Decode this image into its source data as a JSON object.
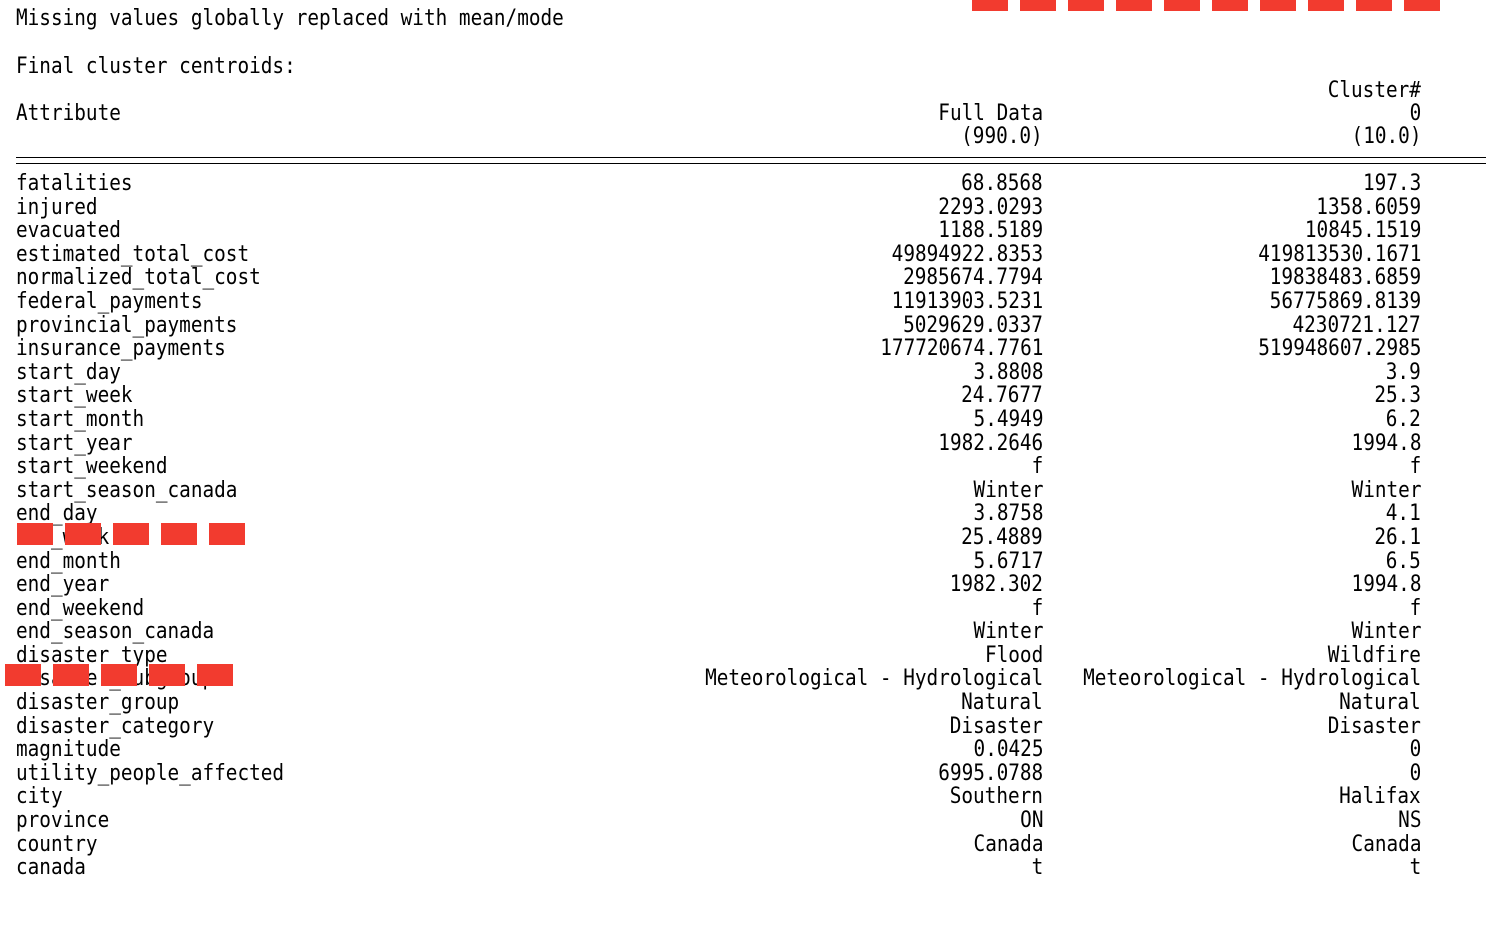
{
  "status_line": "Missing values globally replaced with mean/mode",
  "section_title": "Final cluster centroids:",
  "headers": {
    "attribute": "Attribute",
    "cluster_label": "Cluster#",
    "full_data": "Full Data",
    "full_data_count": "(990.0)",
    "cluster_0": "0",
    "cluster_0_count": "(10.0)"
  },
  "rows": [
    {
      "attr": "fatalities",
      "full": "68.8568",
      "c0": "197.3"
    },
    {
      "attr": "injured",
      "full": "2293.0293",
      "c0": "1358.6059"
    },
    {
      "attr": "evacuated",
      "full": "1188.5189",
      "c0": "10845.1519"
    },
    {
      "attr": "estimated_total_cost",
      "full": "49894922.8353",
      "c0": "419813530.1671"
    },
    {
      "attr": "normalized_total_cost",
      "full": "2985674.7794",
      "c0": "19838483.6859"
    },
    {
      "attr": "federal_payments",
      "full": "11913903.5231",
      "c0": "56775869.8139"
    },
    {
      "attr": "provincial_payments",
      "full": "5029629.0337",
      "c0": "4230721.127"
    },
    {
      "attr": "insurance_payments",
      "full": "177720674.7761",
      "c0": "519948607.2985"
    },
    {
      "attr": "start_day",
      "full": "3.8808",
      "c0": "3.9"
    },
    {
      "attr": "start_week",
      "full": "24.7677",
      "c0": "25.3"
    },
    {
      "attr": "start_month",
      "full": "5.4949",
      "c0": "6.2"
    },
    {
      "attr": "start_year",
      "full": "1982.2646",
      "c0": "1994.8"
    },
    {
      "attr": "start_weekend",
      "full": "f",
      "c0": "f"
    },
    {
      "attr": "start_season_canada",
      "full": "Winter",
      "c0": "Winter"
    },
    {
      "attr": "end_day",
      "full": "3.8758",
      "c0": "4.1"
    },
    {
      "attr": "end_week",
      "full": "25.4889",
      "c0": "26.1"
    },
    {
      "attr": "end_month",
      "full": "5.6717",
      "c0": "6.5"
    },
    {
      "attr": "end_year",
      "full": "1982.302",
      "c0": "1994.8"
    },
    {
      "attr": "end_weekend",
      "full": "f",
      "c0": "f"
    },
    {
      "attr": "end_season_canada",
      "full": "Winter",
      "c0": "Winter"
    },
    {
      "attr": "disaster_type",
      "full": "Flood",
      "c0": "Wildfire"
    },
    {
      "attr": "disaster_subgroup",
      "full": "Meteorological - Hydrological",
      "c0": "Meteorological - Hydrological"
    },
    {
      "attr": "disaster_group",
      "full": "Natural",
      "c0": "Natural"
    },
    {
      "attr": "disaster_category",
      "full": "Disaster",
      "c0": "Disaster"
    },
    {
      "attr": "magnitude",
      "full": "0.0425",
      "c0": "0"
    },
    {
      "attr": "utility_people_affected",
      "full": "6995.0788",
      "c0": "0"
    },
    {
      "attr": "city",
      "full": "Southern",
      "c0": "Halifax"
    },
    {
      "attr": "province",
      "full": "ON",
      "c0": "NS"
    },
    {
      "attr": "country",
      "full": "Canada",
      "c0": "Canada"
    },
    {
      "attr": "canada",
      "full": "t",
      "c0": "t"
    }
  ],
  "annotation_color": "#f23b2f"
}
